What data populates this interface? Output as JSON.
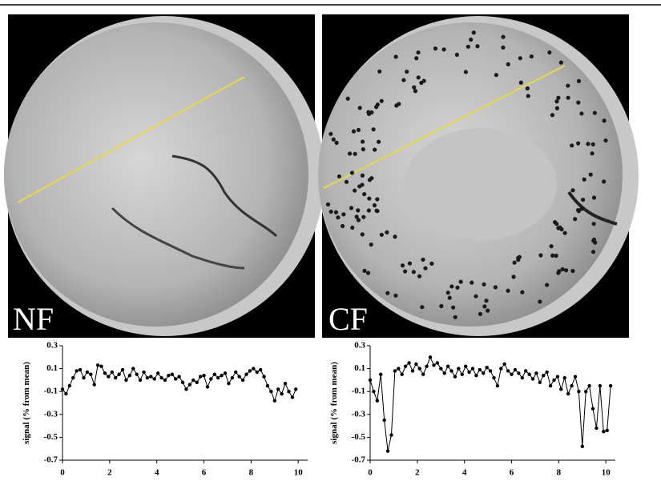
{
  "images": [
    {
      "label": "NF"
    },
    {
      "label": "CF"
    }
  ],
  "chart_data": [
    {
      "type": "line",
      "ylabel": "signal (% from mean)",
      "x": [
        0,
        0.15,
        0.3,
        0.45,
        0.6,
        0.75,
        0.9,
        1.05,
        1.2,
        1.35,
        1.5,
        1.65,
        1.8,
        1.95,
        2.1,
        2.25,
        2.4,
        2.55,
        2.7,
        2.85,
        3,
        3.15,
        3.3,
        3.45,
        3.6,
        3.75,
        3.9,
        4.05,
        4.2,
        4.35,
        4.5,
        4.65,
        4.8,
        4.95,
        5.1,
        5.25,
        5.4,
        5.55,
        5.7,
        5.85,
        6,
        6.15,
        6.3,
        6.45,
        6.6,
        6.75,
        6.9,
        7.05,
        7.2,
        7.35,
        7.5,
        7.65,
        7.8,
        7.95,
        8.1,
        8.25,
        8.4,
        8.55,
        8.7,
        8.85,
        9,
        9.15,
        9.3,
        9.45,
        9.6,
        9.75,
        9.9
      ],
      "series": [
        {
          "color": "#000000",
          "values": [
            -0.08,
            -0.12,
            -0.05,
            0.02,
            0.08,
            0.09,
            0.02,
            0.07,
            0.05,
            -0.04,
            0.13,
            0.12,
            0.06,
            0.03,
            0.07,
            0.02,
            0.05,
            0.09,
            0,
            0.04,
            0.1,
            0.05,
            0,
            0.07,
            0.02,
            0.03,
            0.01,
            0.06,
            0.02,
            0,
            0.04,
            0.05,
            0.01,
            0.03,
            -0.02,
            -0.08,
            -0.04,
            0,
            -0.02,
            0.03,
            0.04,
            -0.06,
            0.01,
            0.05,
            0.02,
            0.04,
            0.06,
            -0.03,
            0.02,
            0.07,
            0.03,
            0,
            0.05,
            0.08,
            0.1,
            0.07,
            0.09,
            0.03,
            -0.05,
            -0.1,
            -0.18,
            -0.08,
            -0.12,
            -0.03,
            -0.1,
            -0.15,
            -0.08
          ]
        }
      ],
      "xlim": [
        0,
        10.4
      ],
      "xticks": [
        0,
        2,
        4,
        6,
        8,
        10
      ],
      "ylim": [
        -0.7,
        0.3
      ],
      "yticks": [
        0.3,
        0.1,
        -0.1,
        -0.3,
        -0.5,
        -0.7
      ]
    },
    {
      "type": "line",
      "ylabel": "signal (% from mean)",
      "x": [
        0,
        0.15,
        0.3,
        0.45,
        0.6,
        0.75,
        0.9,
        1.05,
        1.2,
        1.35,
        1.5,
        1.65,
        1.8,
        1.95,
        2.1,
        2.25,
        2.4,
        2.55,
        2.7,
        2.85,
        3,
        3.15,
        3.3,
        3.45,
        3.6,
        3.75,
        3.9,
        4.05,
        4.2,
        4.35,
        4.5,
        4.65,
        4.8,
        4.95,
        5.1,
        5.25,
        5.4,
        5.55,
        5.7,
        5.85,
        6,
        6.15,
        6.3,
        6.45,
        6.6,
        6.75,
        6.9,
        7.05,
        7.2,
        7.35,
        7.5,
        7.65,
        7.8,
        7.95,
        8.1,
        8.25,
        8.4,
        8.55,
        8.7,
        8.85,
        9,
        9.15,
        9.3,
        9.45,
        9.6,
        9.75,
        9.9,
        10.05,
        10.2
      ],
      "series": [
        {
          "color": "#000000",
          "values": [
            0,
            -0.1,
            -0.18,
            0.05,
            -0.35,
            -0.62,
            -0.48,
            0.08,
            0.1,
            0.05,
            0.12,
            0.15,
            0.08,
            0.14,
            0.1,
            0.05,
            0.12,
            0.2,
            0.13,
            0.15,
            0.1,
            0.06,
            0.12,
            0.08,
            0.03,
            0.1,
            0.05,
            0.12,
            0.07,
            0.1,
            0.04,
            0.09,
            0.06,
            0.11,
            0.08,
            0.02,
            -0.05,
            0.1,
            0.14,
            0.08,
            0.05,
            0.09,
            0.06,
            0.02,
            0.08,
            0.05,
            0.01,
            0.06,
            -0.02,
            0.04,
            0.07,
            -0.05,
            0,
            0.03,
            -0.08,
            0.02,
            -0.12,
            -0.05,
            0.03,
            -0.1,
            -0.58,
            -0.1,
            -0.05,
            -0.25,
            -0.42,
            -0.05,
            -0.45,
            -0.44,
            -0.05
          ]
        }
      ],
      "xlim": [
        0,
        10.4
      ],
      "xticks": [
        0,
        2,
        4,
        6,
        8,
        10
      ],
      "ylim": [
        -0.7,
        0.3
      ],
      "yticks": [
        0.3,
        0.1,
        -0.1,
        -0.3,
        -0.5,
        -0.7
      ]
    }
  ]
}
